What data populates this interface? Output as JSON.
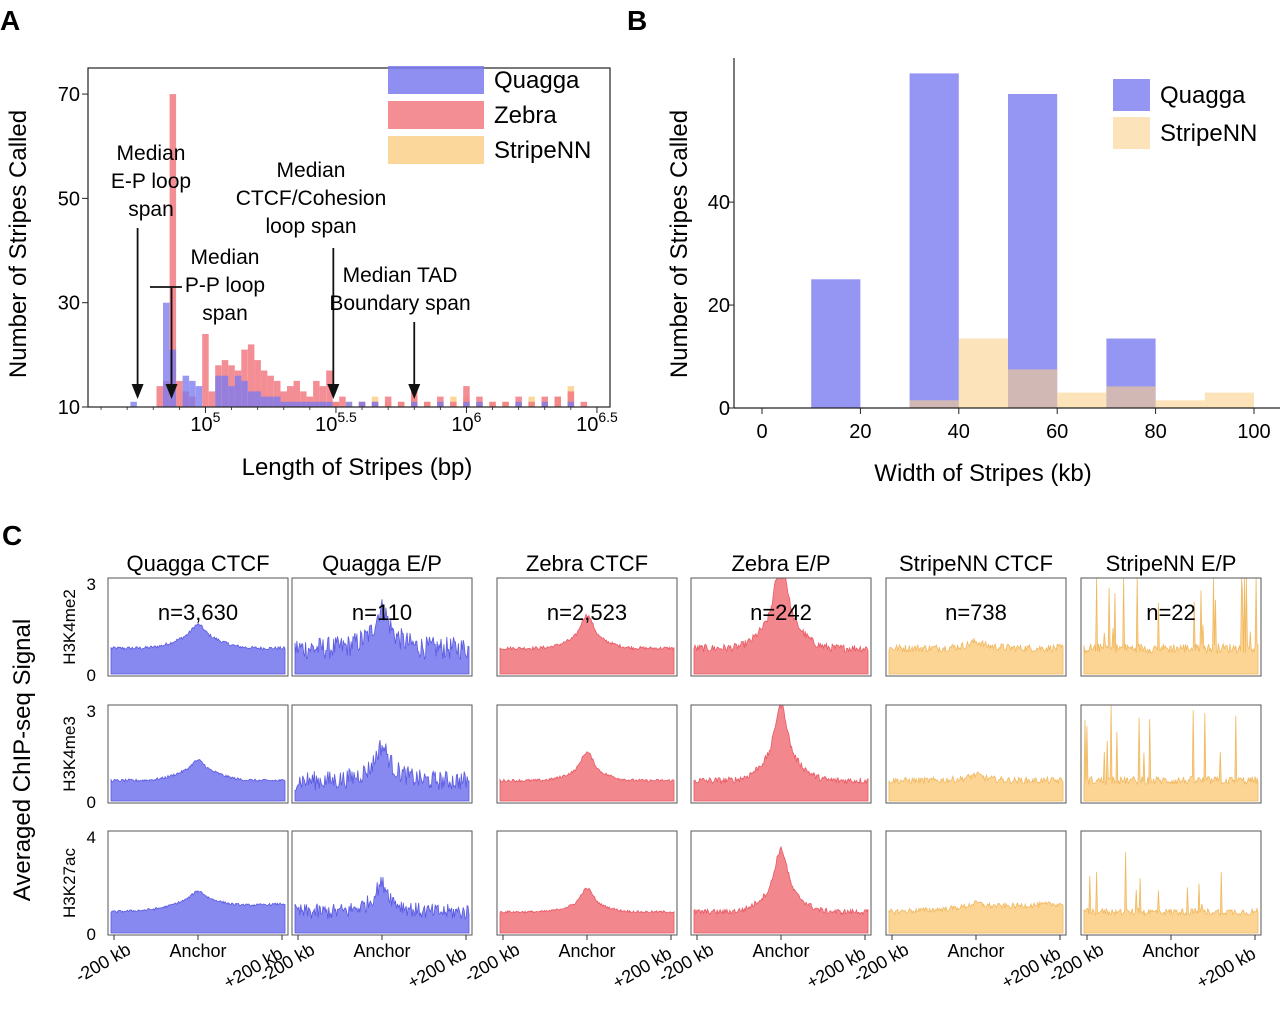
{
  "chart_data": [
    {
      "panel": "A",
      "type": "bar",
      "xlabel": "Length of Stripes (bp)",
      "ylabel": "Number of Stripes Called",
      "x_scale": "log10",
      "xlim_log10": [
        4.55,
        6.55
      ],
      "ylim": [
        10,
        75
      ],
      "y_ticks": [
        10,
        30,
        50,
        70
      ],
      "x_tick_labels": [
        {
          "log": 5.0,
          "base": "10",
          "exp": "5"
        },
        {
          "log": 5.5,
          "base": "10",
          "exp": "5.5"
        },
        {
          "log": 6.0,
          "base": "10",
          "exp": "6"
        },
        {
          "log": 6.5,
          "base": "10",
          "exp": "6.5"
        }
      ],
      "legend": [
        "Quagga",
        "Zebra",
        "StripeNN"
      ],
      "legend_position": "top-right",
      "series": [
        {
          "name": "Quagga",
          "color": "#7b7bf0",
          "bin_width_log10": 0.025,
          "bins": [
            [
              4.725,
              11
            ],
            [
              4.85,
              30
            ],
            [
              4.875,
              21
            ],
            [
              4.925,
              16
            ],
            [
              4.95,
              15
            ],
            [
              4.975,
              14
            ],
            [
              5.05,
              16
            ],
            [
              5.075,
              16
            ],
            [
              5.1,
              14
            ],
            [
              5.125,
              16
            ],
            [
              5.15,
              15
            ],
            [
              5.175,
              13
            ],
            [
              5.2,
              13
            ],
            [
              5.225,
              12
            ],
            [
              5.25,
              12
            ],
            [
              5.275,
              12
            ],
            [
              5.3,
              11
            ],
            [
              5.325,
              11
            ],
            [
              5.35,
              11
            ],
            [
              5.375,
              11
            ],
            [
              5.4,
              11
            ],
            [
              5.425,
              11
            ],
            [
              5.45,
              11
            ],
            [
              5.475,
              11
            ],
            [
              5.55,
              11
            ],
            [
              5.6,
              11
            ],
            [
              5.65,
              11
            ],
            [
              5.8,
              11
            ],
            [
              5.9,
              11
            ],
            [
              6.0,
              11
            ],
            [
              6.05,
              11
            ],
            [
              6.2,
              11
            ],
            [
              6.3,
              11
            ],
            [
              6.4,
              11
            ]
          ]
        },
        {
          "name": "Zebra",
          "color": "#f27a82",
          "bin_width_log10": 0.025,
          "bins": [
            [
              4.825,
              14
            ],
            [
              4.85,
              15
            ],
            [
              4.875,
              70
            ],
            [
              4.9,
              15
            ],
            [
              4.925,
              13
            ],
            [
              4.95,
              12
            ],
            [
              5.0,
              24
            ],
            [
              5.025,
              13
            ],
            [
              5.05,
              18
            ],
            [
              5.075,
              19
            ],
            [
              5.1,
              18
            ],
            [
              5.125,
              17
            ],
            [
              5.15,
              21
            ],
            [
              5.175,
              22
            ],
            [
              5.2,
              19
            ],
            [
              5.225,
              17
            ],
            [
              5.25,
              16
            ],
            [
              5.275,
              15
            ],
            [
              5.3,
              13
            ],
            [
              5.325,
              14
            ],
            [
              5.35,
              15
            ],
            [
              5.375,
              13
            ],
            [
              5.4,
              12
            ],
            [
              5.425,
              15
            ],
            [
              5.45,
              14
            ],
            [
              5.475,
              17
            ],
            [
              5.5,
              11
            ],
            [
              5.525,
              12
            ],
            [
              5.6,
              11
            ],
            [
              5.65,
              11
            ],
            [
              5.7,
              12
            ],
            [
              5.75,
              11
            ],
            [
              5.8,
              13
            ],
            [
              5.85,
              11
            ],
            [
              5.9,
              12
            ],
            [
              5.95,
              11
            ],
            [
              6.0,
              14
            ],
            [
              6.05,
              12
            ],
            [
              6.1,
              11
            ],
            [
              6.15,
              11
            ],
            [
              6.2,
              12
            ],
            [
              6.25,
              11
            ],
            [
              6.3,
              12
            ],
            [
              6.35,
              12
            ],
            [
              6.4,
              13
            ],
            [
              6.45,
              11
            ]
          ]
        },
        {
          "name": "StripeNN",
          "color": "#fcd08a",
          "bin_width_log10": 0.025,
          "bins": [
            [
              5.5,
              11
            ],
            [
              5.55,
              11
            ],
            [
              5.6,
              11
            ],
            [
              5.65,
              12
            ],
            [
              5.7,
              11
            ],
            [
              5.75,
              11
            ],
            [
              5.8,
              12
            ],
            [
              5.85,
              11
            ],
            [
              5.9,
              11
            ],
            [
              5.95,
              12
            ],
            [
              6.0,
              12
            ],
            [
              6.05,
              11
            ],
            [
              6.1,
              11
            ],
            [
              6.15,
              11
            ],
            [
              6.2,
              11
            ],
            [
              6.25,
              12
            ],
            [
              6.3,
              11
            ],
            [
              6.35,
              12
            ],
            [
              6.4,
              14
            ]
          ]
        }
      ],
      "annotations": [
        {
          "lines": [
            "Median",
            "E-P loop",
            "span"
          ],
          "arrow_x_log10": 4.74
        },
        {
          "lines": [
            "Median",
            "P-P loop",
            "span"
          ],
          "arrow_x_log10": 4.87
        },
        {
          "lines": [
            "Median",
            "CTCF/Cohesion",
            "loop span"
          ],
          "arrow_x_log10": 5.49
        },
        {
          "lines": [
            "Median TAD",
            "Boundary span"
          ],
          "arrow_x_log10": 5.8
        }
      ]
    },
    {
      "panel": "B",
      "type": "bar",
      "xlabel": "Width of Stripes (kb)",
      "ylabel": "Number of Stripes Called",
      "xlim": [
        0,
        100
      ],
      "ylim": [
        0,
        68
      ],
      "x_ticks": [
        0,
        20,
        40,
        60,
        80,
        100
      ],
      "y_ticks": [
        0,
        20,
        40
      ],
      "legend": [
        "Quagga",
        "StripeNN"
      ],
      "legend_position": "top-right",
      "bin_width": 10,
      "series": [
        {
          "name": "Quagga",
          "color": "#7b7bf0",
          "bins": [
            [
              10,
              25
            ],
            [
              30,
              65
            ],
            [
              50,
              61
            ],
            [
              70,
              13.5
            ]
          ]
        },
        {
          "name": "StripeNN",
          "color": "#fcd08a",
          "bins": [
            [
              30,
              1.5
            ],
            [
              40,
              13.5
            ],
            [
              50,
              7.5
            ],
            [
              60,
              3
            ],
            [
              70,
              4.2
            ],
            [
              80,
              1.5
            ],
            [
              90,
              3
            ]
          ]
        }
      ]
    },
    {
      "panel": "C",
      "type": "area",
      "ylabel": "Averaged ChIP-seq Signal",
      "columns": [
        {
          "title": "Quagga CTCF",
          "n": "n=3,630",
          "color": "#7b7bf0",
          "edge": "#5a5ae0",
          "noise": 0.05,
          "peak": 0.35,
          "spikes": 0.0
        },
        {
          "title": "Quagga E/P",
          "n": "n=110",
          "color": "#7b7bf0",
          "edge": "#5a5ae0",
          "noise": 0.35,
          "peak": 0.9,
          "spikes": 0.0
        },
        {
          "title": "Zebra CTCF",
          "n": "n=2,523",
          "color": "#f27a82",
          "edge": "#e85a64",
          "noise": 0.05,
          "peak": 0.75,
          "spikes": 0.0
        },
        {
          "title": "Zebra E/P",
          "n": "n=242",
          "color": "#f27a82",
          "edge": "#e85a64",
          "noise": 0.12,
          "peak": 2.0,
          "spikes": 0.0
        },
        {
          "title": "StripeNN CTCF",
          "n": "n=738",
          "color": "#fcd08a",
          "edge": "#f0b860",
          "noise": 0.12,
          "peak": 0.15,
          "spikes": 0.0
        },
        {
          "title": "StripeNN E/P",
          "n": "n=22",
          "color": "#fcd08a",
          "edge": "#f0b860",
          "noise": 0.15,
          "peak": 0.0,
          "spikes": 1.0
        }
      ],
      "rows": [
        {
          "label": "H3K4me2",
          "ymax": 3,
          "tick_top": "3",
          "tick_bottom": "0",
          "base": 0.85
        },
        {
          "label": "H3K4me3",
          "ymax": 3.5,
          "tick_top": "3",
          "tick_bottom": "0",
          "base": 0.8
        },
        {
          "label": "H3K27ac",
          "ymax": 4.5,
          "tick_top": "4",
          "tick_bottom": "0",
          "base": 1.0
        }
      ],
      "x_tick_labels": [
        "-200 kb",
        "Anchor",
        "+200 kb"
      ]
    }
  ],
  "panel_letters": [
    "A",
    "B",
    "C"
  ]
}
